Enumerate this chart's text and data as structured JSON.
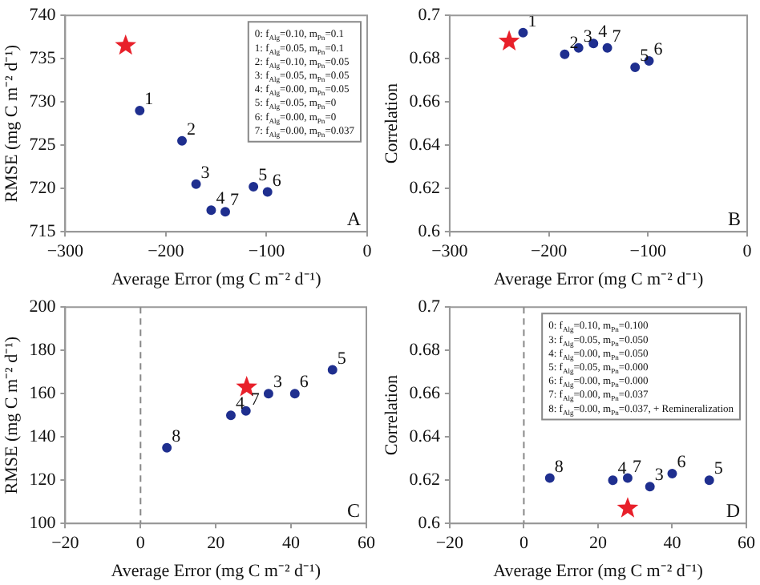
{
  "chart_data": [
    {
      "type": "scatter",
      "xlabel": "Average Error (mg C m⁻² d⁻¹)",
      "ylabel": "RMSE (mg C m⁻² d⁻¹)",
      "xlim": [
        -300,
        0
      ],
      "xticks": [
        -300,
        -200,
        -100,
        0
      ],
      "ylim": [
        715,
        740
      ],
      "yticks": [
        715,
        720,
        725,
        730,
        735,
        740
      ],
      "grid": false,
      "series": [
        {
          "color": "#e8202a",
          "marker": "star",
          "x": [
            -240
          ],
          "values": [
            736.5
          ]
        },
        {
          "color": "#1f2f8f",
          "marker": "circle",
          "x": [
            -226,
            -184,
            -170,
            -155,
            -113,
            -99,
            -141
          ],
          "values": [
            729,
            725.5,
            720.5,
            717.5,
            720.2,
            719.6,
            717.3
          ]
        }
      ],
      "annotations": [
        {
          "text": "1",
          "x": -226,
          "y": 729
        },
        {
          "text": "2",
          "x": -184,
          "y": 725.5
        },
        {
          "text": "3",
          "x": -170,
          "y": 720.5
        },
        {
          "text": "4",
          "x": -155,
          "y": 717.5
        },
        {
          "text": "5",
          "x": -113,
          "y": 720.2
        },
        {
          "text": "6",
          "x": -99,
          "y": 719.6
        },
        {
          "text": "7",
          "x": -141,
          "y": 717.3
        },
        "0: f$_{Alg}$=0.10, m$_{Pn}$=0.1",
        "1: f$_{Alg}$=0.05, m$_{Pn}$=0.1",
        "2: f$_{Alg}$=0.10, m$_{Pn}$=0.05",
        "3: f$_{Alg}$=0.05, m$_{Pn}$=0.05",
        "4: f$_{Alg}$=0.00, m$_{Pn}$=0.05",
        "5: f$_{Alg}$=0.05, m$_{Pn}$=0",
        "6: f$_{Alg}$=0.00, m$_{Pn}$=0",
        "7: f$_{Alg}$=0.00, m$_{Pn}$=0.037",
        "A"
      ]
    },
    {
      "type": "scatter",
      "xlabel": "Average Error (mg C m⁻² d⁻¹)",
      "ylabel": "Correlation",
      "xlim": [
        -300,
        0
      ],
      "xticks": [
        -300,
        -200,
        -100,
        0
      ],
      "ylim": [
        0.6,
        0.7
      ],
      "yticks": [
        0.6,
        0.62,
        0.64,
        0.66,
        0.68,
        0.7
      ],
      "grid": false,
      "series": [
        {
          "color": "#e8202a",
          "marker": "star",
          "x": [
            -240
          ],
          "values": [
            0.688
          ]
        },
        {
          "color": "#1f2f8f",
          "marker": "circle",
          "x": [
            -226,
            -184,
            -170,
            -155,
            -113,
            -99,
            -141
          ],
          "values": [
            0.692,
            0.682,
            0.685,
            0.687,
            0.676,
            0.679,
            0.685
          ]
        }
      ],
      "annotations": [
        {
          "text": "1",
          "x": -226,
          "y": 0.692
        },
        {
          "text": "2",
          "x": -184,
          "y": 0.682
        },
        {
          "text": "3",
          "x": -170,
          "y": 0.685
        },
        {
          "text": "4",
          "x": -155,
          "y": 0.687
        },
        {
          "text": "5",
          "x": -113,
          "y": 0.676
        },
        {
          "text": "6",
          "x": -99,
          "y": 0.679
        },
        {
          "text": "7",
          "x": -141,
          "y": 0.685
        },
        "B"
      ]
    },
    {
      "type": "scatter",
      "xlabel": "Average Error (mg C m⁻² d⁻¹)",
      "ylabel": "RMSE (mg C m⁻² d⁻¹)",
      "xlim": [
        -20,
        60
      ],
      "xticks": [
        -20,
        0,
        20,
        40,
        60
      ],
      "ylim": [
        100,
        200
      ],
      "yticks": [
        100,
        120,
        140,
        160,
        180,
        200
      ],
      "grid": false,
      "ref_lines": [
        {
          "axis": "x",
          "value": 0,
          "label": null,
          "color": "#888888",
          "line_style": "dashed"
        }
      ],
      "series": [
        {
          "color": "#e8202a",
          "marker": "star",
          "x": [
            28.2
          ],
          "values": [
            163
          ]
        },
        {
          "color": "#1f2f8f",
          "marker": "circle",
          "x": [
            34,
            41,
            51,
            28,
            24,
            7
          ],
          "values": [
            160,
            160,
            171,
            152,
            150,
            135
          ]
        }
      ],
      "annotations": [
        {
          "text": "3",
          "x": 34,
          "y": 160
        },
        {
          "text": "6",
          "x": 41,
          "y": 160
        },
        {
          "text": "5",
          "x": 51,
          "y": 171
        },
        {
          "text": "7",
          "x": 28,
          "y": 152
        },
        {
          "text": "4",
          "x": 24,
          "y": 150
        },
        {
          "text": "8",
          "x": 7,
          "y": 135
        },
        "C"
      ]
    },
    {
      "type": "scatter",
      "xlabel": "Average Error (mg C m⁻² d⁻¹)",
      "ylabel": "Correlation",
      "xlim": [
        -20,
        60
      ],
      "xticks": [
        -20,
        0,
        20,
        40,
        60
      ],
      "ylim": [
        0.6,
        0.7
      ],
      "yticks": [
        0.6,
        0.62,
        0.64,
        0.66,
        0.68,
        0.7
      ],
      "grid": false,
      "ref_lines": [
        {
          "axis": "x",
          "value": 0,
          "label": null,
          "color": "#888888",
          "line_style": "dashed"
        }
      ],
      "series": [
        {
          "color": "#e8202a",
          "marker": "star",
          "x": [
            28
          ],
          "values": [
            0.607
          ]
        },
        {
          "color": "#1f2f8f",
          "marker": "circle",
          "x": [
            34,
            40,
            50,
            28,
            24,
            7
          ],
          "values": [
            0.617,
            0.623,
            0.62,
            0.621,
            0.62,
            0.621
          ]
        }
      ],
      "annotations": [
        {
          "text": "3",
          "x": 34,
          "y": 0.617
        },
        {
          "text": "6",
          "x": 40,
          "y": 0.623
        },
        {
          "text": "5",
          "x": 50,
          "y": 0.62
        },
        {
          "text": "7",
          "x": 28,
          "y": 0.621
        },
        {
          "text": "4",
          "x": 24,
          "y": 0.62
        },
        {
          "text": "8",
          "x": 7,
          "y": 0.621
        },
        "0: f$_{Alg}$=0.10, m$_{Pn}$=0.100",
        "3: f$_{Alg}$=0.05, m$_{Pn}$=0.050",
        "4: f$_{Alg}$=0.00, m$_{Pn}$=0.050",
        "5: f$_{Alg}$=0.05, m$_{Pn}$=0.000",
        "6: f$_{Alg}$=0.00, m$_{Pn}$=0.000",
        "7: f$_{Alg}$=0.00, m$_{Pn}$=0.037",
        "8: f$_{Alg}$=0.00, m$_{Pn}$=0.037, + Remineralization",
        "D"
      ]
    }
  ]
}
